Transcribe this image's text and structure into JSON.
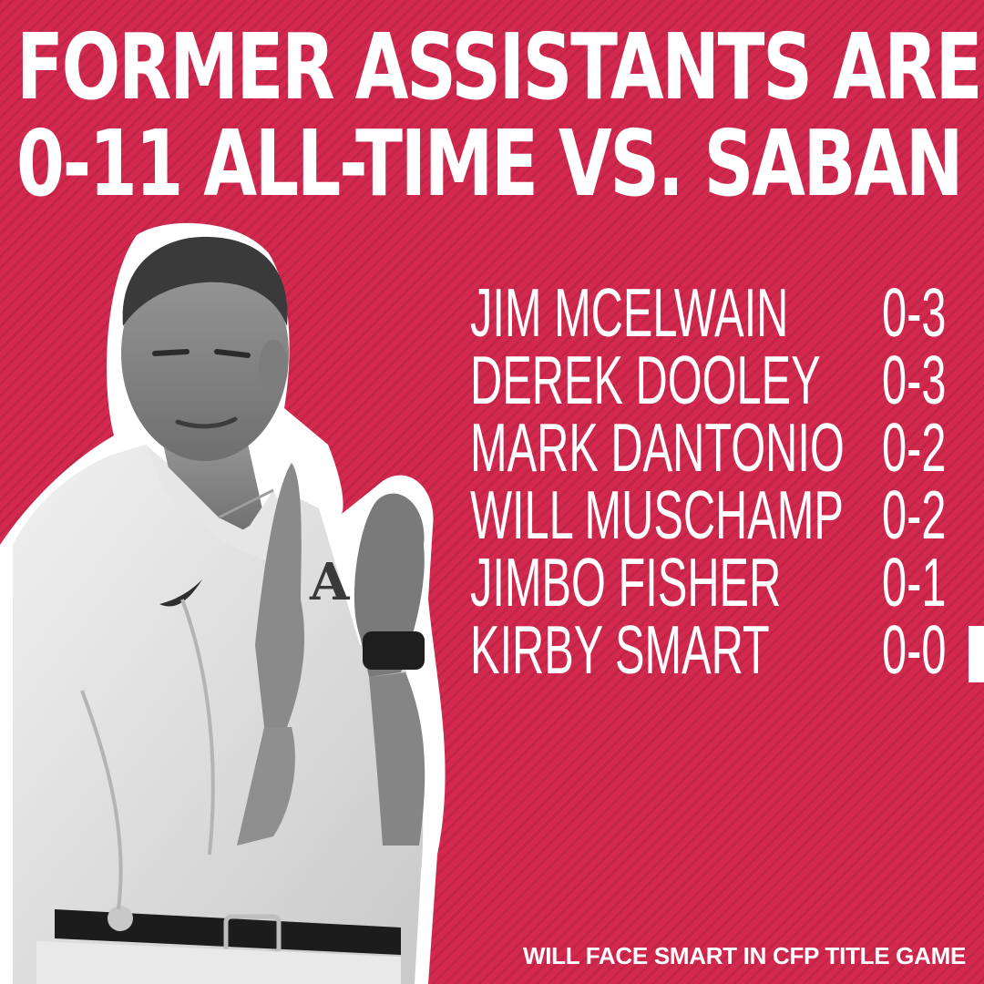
{
  "headline": {
    "line1": "FORMER ASSISTANTS ARE",
    "line2": "0-11 ALL-TIME VS. SABAN"
  },
  "records": [
    {
      "name": "JIM MCELWAIN",
      "record": "0-3"
    },
    {
      "name": "DEREK DOOLEY",
      "record": "0-3"
    },
    {
      "name": "MARK DANTONIO",
      "record": "0-2"
    },
    {
      "name": "WILL MUSCHAMP",
      "record": "0-2"
    },
    {
      "name": "JIMBO FISHER",
      "record": "0-1"
    },
    {
      "name": "KIRBY SMART",
      "record": "0-0"
    }
  ],
  "footer": "WILL FACE SMART IN CFP TITLE GAME",
  "colors": {
    "background": "#d3294f",
    "text": "#ffffff"
  }
}
